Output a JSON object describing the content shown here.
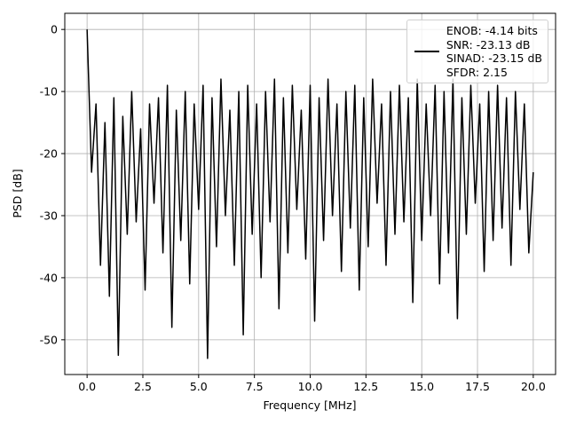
{
  "chart_data": {
    "type": "line",
    "xlabel": "Frequency [MHz]",
    "ylabel": "PSD [dB]",
    "x": [
      0,
      0.2,
      0.4,
      0.6,
      0.8,
      1,
      1.2,
      1.4,
      1.6,
      1.8,
      2,
      2.2,
      2.4,
      2.6,
      2.8,
      3,
      3.2,
      3.4,
      3.6,
      3.8,
      4,
      4.2,
      4.4,
      4.6,
      4.8,
      5,
      5.2,
      5.4,
      5.6,
      5.8,
      6,
      6.2,
      6.4,
      6.6,
      6.8,
      7,
      7.2,
      7.4,
      7.6,
      7.8,
      8,
      8.2,
      8.4,
      8.6,
      8.8,
      9,
      9.2,
      9.4,
      9.6,
      9.8,
      10,
      10.2,
      10.4,
      10.6,
      10.8,
      11,
      11.2,
      11.4,
      11.6,
      11.8,
      12,
      12.2,
      12.4,
      12.6,
      12.8,
      13,
      13.2,
      13.4,
      13.6,
      13.8,
      14,
      14.2,
      14.4,
      14.6,
      14.8,
      15,
      15.2,
      15.4,
      15.6,
      15.8,
      16,
      16.2,
      16.4,
      16.6,
      16.8,
      17,
      17.2,
      17.4,
      17.6,
      17.8,
      18,
      18.2,
      18.4,
      18.6,
      18.8,
      19,
      19.2,
      19.4,
      19.6,
      19.8,
      20
    ],
    "series": [
      {
        "name": "ENOB: -4.14 bits\nSNR: -23.13 dB\nSINAD: -23.15 dB\nSFDR: 2.15",
        "color": "#000000",
        "values": [
          0,
          -23,
          -12,
          -38,
          -15,
          -43,
          -11,
          -52.5,
          -14,
          -33,
          -10,
          -31,
          -16,
          -42,
          -12,
          -28,
          -11,
          -36,
          -9,
          -48,
          -13,
          -34,
          -10,
          -41,
          -12,
          -29,
          -9,
          -53,
          -11,
          -35,
          -8,
          -30,
          -13,
          -38,
          -10,
          -49.2,
          -9,
          -33,
          -12,
          -40,
          -10,
          -31,
          -8,
          -45,
          -11,
          -36,
          -9,
          -29,
          -13,
          -37,
          -9,
          -47,
          -11,
          -34,
          -8,
          -30,
          -12,
          -39,
          -10,
          -32,
          -9,
          -42,
          -11,
          -35,
          -8,
          -28,
          -12,
          -38,
          -10,
          -33,
          -9,
          -31,
          -11,
          -44,
          -8,
          -34,
          -12,
          -30,
          -9,
          -41,
          -10,
          -36,
          -8,
          -46.6,
          -11,
          -33,
          -9,
          -28,
          -12,
          -39,
          -10,
          -34,
          -9,
          -32,
          -11,
          -38,
          -10,
          -29,
          -12,
          -36,
          -23
        ]
      }
    ],
    "xlim": [
      -1,
      21
    ],
    "ylim": [
      -55.6,
      2.6
    ],
    "xticks": [
      {
        "value": 0,
        "label": "0.0"
      },
      {
        "value": 2.5,
        "label": "2.5"
      },
      {
        "value": 5,
        "label": "5.0"
      },
      {
        "value": 7.5,
        "label": "7.5"
      },
      {
        "value": 10,
        "label": "10.0"
      },
      {
        "value": 12.5,
        "label": "12.5"
      },
      {
        "value": 15,
        "label": "15.0"
      },
      {
        "value": 17.5,
        "label": "17.5"
      },
      {
        "value": 20,
        "label": "20.0"
      }
    ],
    "yticks": [
      0,
      -10,
      -20,
      -30,
      -40,
      -50
    ],
    "grid": true,
    "legend": "upper right"
  }
}
